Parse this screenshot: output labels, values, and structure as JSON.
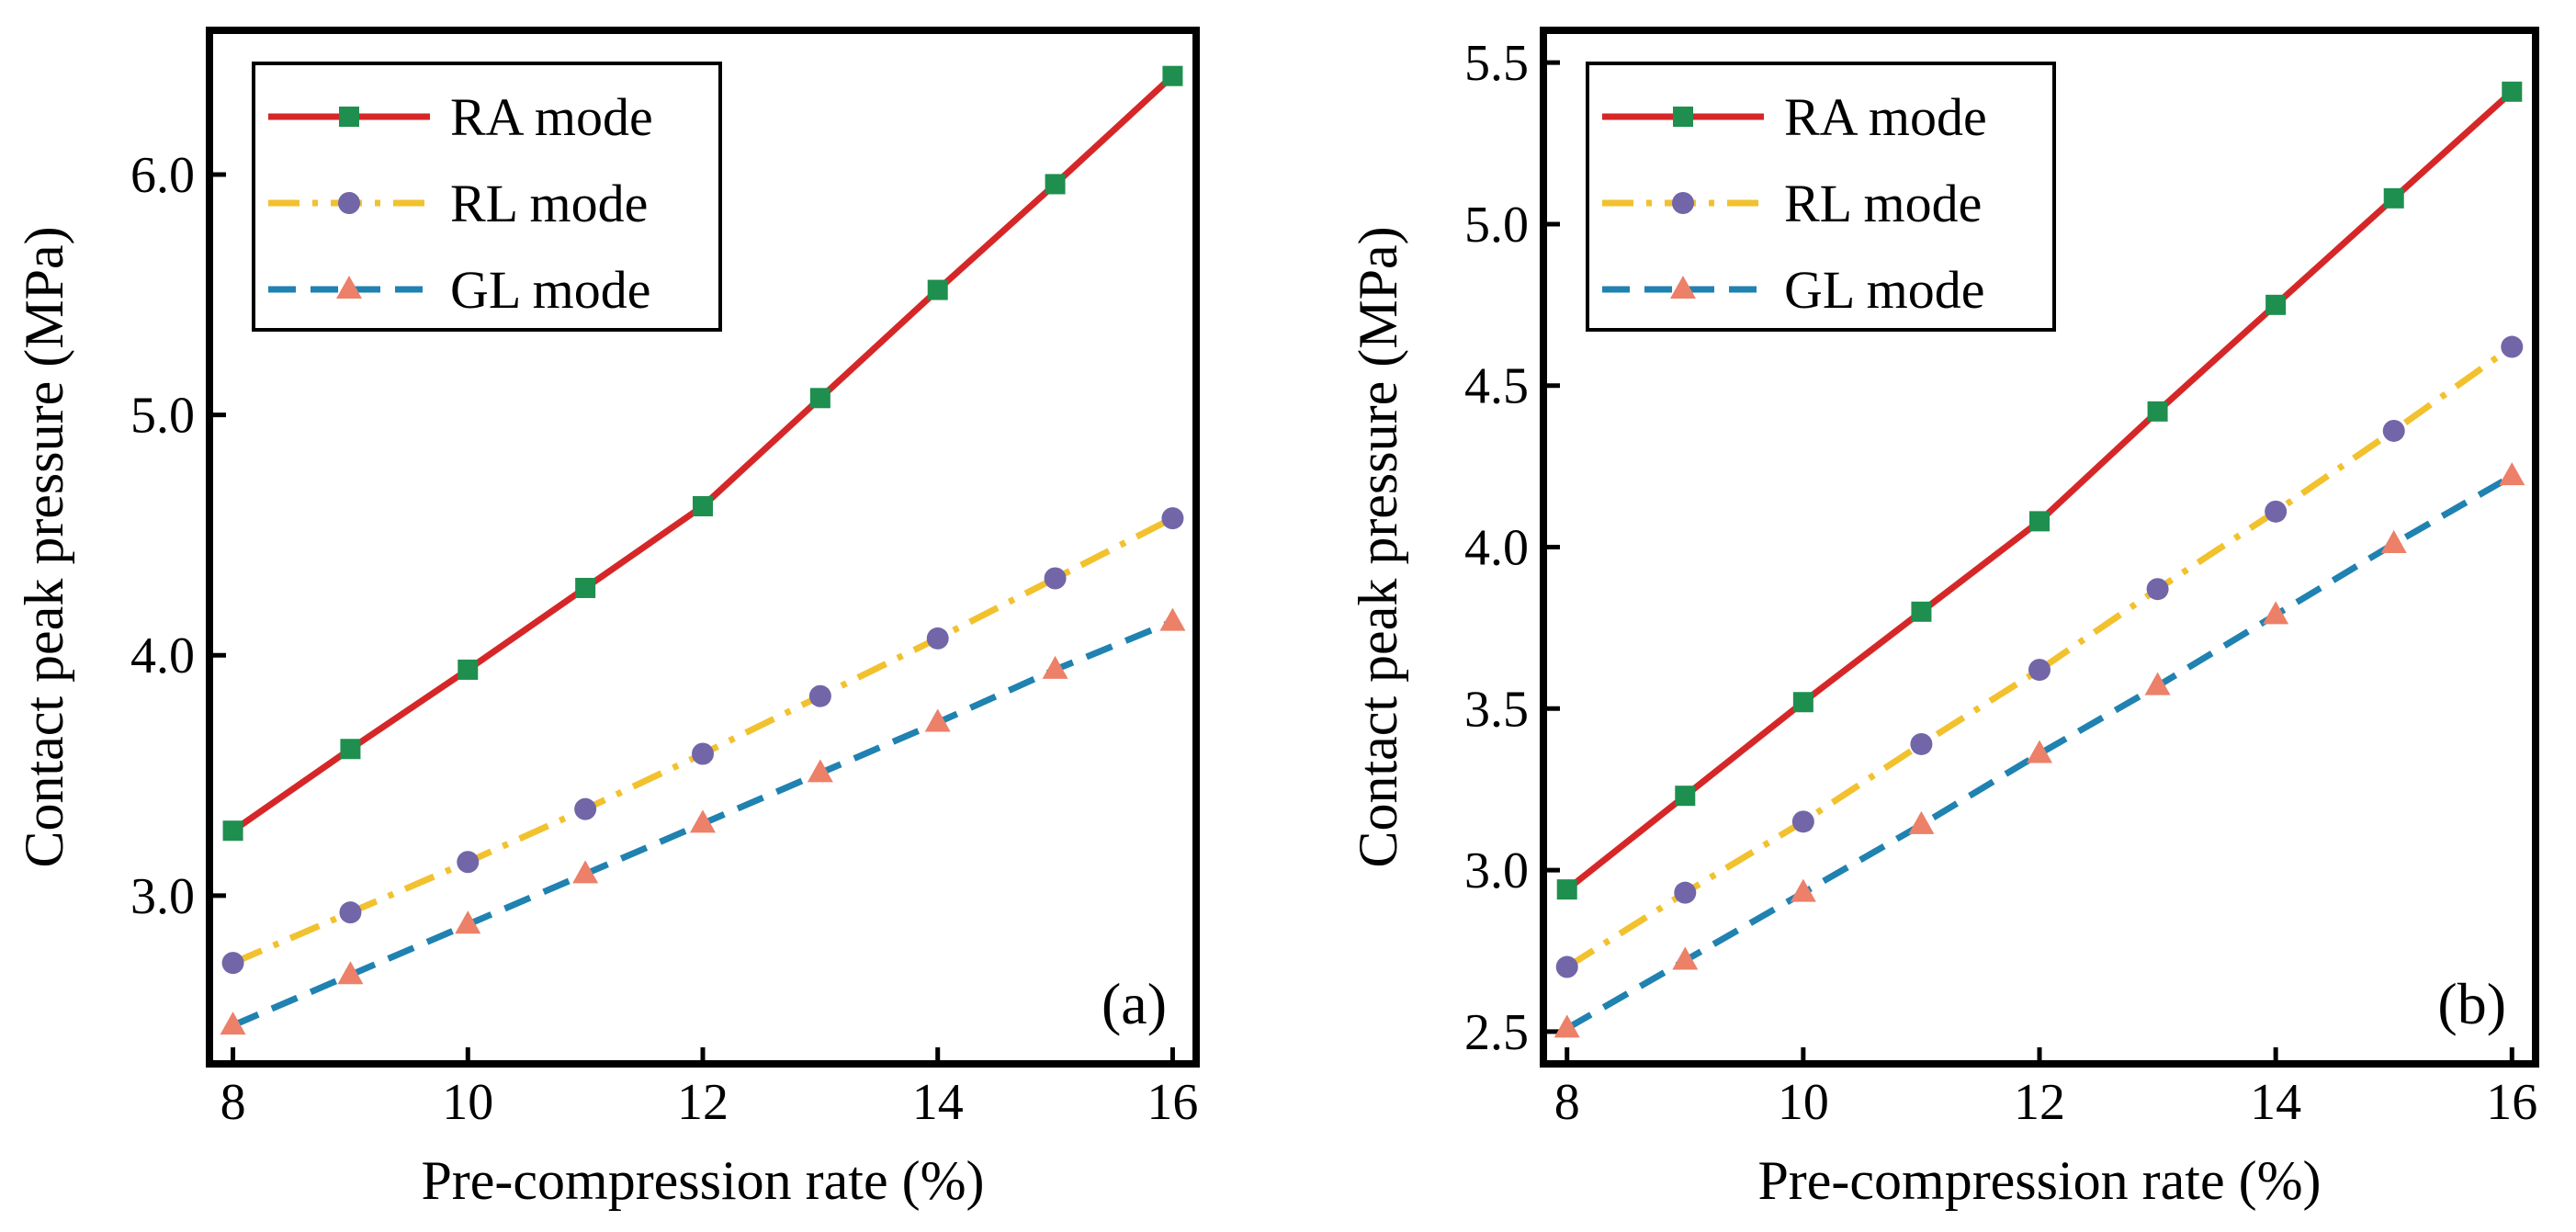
{
  "chart_data": [
    {
      "type": "line",
      "panel_label": "(a)",
      "xlabel": "Pre-compression rate (%)",
      "ylabel": "Contact peak pressure (MPa)",
      "x": [
        8,
        9,
        10,
        11,
        12,
        13,
        14,
        15,
        16
      ],
      "xlim": [
        7.8,
        16.2
      ],
      "ylim": [
        2.3,
        6.6
      ],
      "xticks": [
        8,
        10,
        12,
        14,
        16
      ],
      "xtick_labels": [
        "8",
        "10",
        "12",
        "14",
        "16"
      ],
      "yticks": [
        3.0,
        4.0,
        5.0,
        6.0
      ],
      "ytick_labels": [
        "3.0",
        "4.0",
        "5.0",
        "6.0"
      ],
      "legend_position": "top-left",
      "series": [
        {
          "name": "RA mode",
          "color": "#d62728",
          "marker": "square",
          "marker_color": "#1e8f4e",
          "line": "solid",
          "values": [
            3.27,
            3.61,
            3.94,
            4.28,
            4.62,
            5.07,
            5.52,
            5.96,
            6.41
          ]
        },
        {
          "name": "RL mode",
          "color": "#f2c12e",
          "marker": "circle",
          "marker_color": "#7266a8",
          "line": "dashdot",
          "values": [
            2.72,
            2.93,
            3.14,
            3.36,
            3.59,
            3.83,
            4.07,
            4.32,
            4.57
          ]
        },
        {
          "name": "GL mode",
          "color": "#1f82b0",
          "marker": "triangle",
          "marker_color": "#ec8068",
          "line": "dashed",
          "values": [
            2.46,
            2.67,
            2.88,
            3.09,
            3.3,
            3.51,
            3.72,
            3.94,
            4.14
          ]
        }
      ]
    },
    {
      "type": "line",
      "panel_label": "(b)",
      "xlabel": "Pre-compression rate (%)",
      "ylabel": "Contact peak pressure (MPa)",
      "x": [
        8,
        9,
        10,
        11,
        12,
        13,
        14,
        15,
        16
      ],
      "xlim": [
        7.8,
        16.2
      ],
      "ylim": [
        2.4,
        5.6
      ],
      "xticks": [
        8,
        10,
        12,
        14,
        16
      ],
      "xtick_labels": [
        "8",
        "10",
        "12",
        "14",
        "16"
      ],
      "yticks": [
        2.5,
        3.0,
        3.5,
        4.0,
        4.5,
        5.0,
        5.5
      ],
      "ytick_labels": [
        "2.5",
        "3.0",
        "3.5",
        "4.0",
        "4.5",
        "5.0",
        "5.5"
      ],
      "legend_position": "top-left",
      "series": [
        {
          "name": "RA mode",
          "color": "#d62728",
          "marker": "square",
          "marker_color": "#1e8f4e",
          "line": "solid",
          "values": [
            2.94,
            3.23,
            3.52,
            3.8,
            4.08,
            4.42,
            4.75,
            5.08,
            5.41
          ]
        },
        {
          "name": "RL mode",
          "color": "#f2c12e",
          "marker": "circle",
          "marker_color": "#7266a8",
          "line": "dashdot",
          "values": [
            2.7,
            2.93,
            3.15,
            3.39,
            3.62,
            3.87,
            4.11,
            4.36,
            4.62
          ]
        },
        {
          "name": "GL mode",
          "color": "#1f82b0",
          "marker": "triangle",
          "marker_color": "#ec8068",
          "line": "dashed",
          "values": [
            2.51,
            2.72,
            2.93,
            3.14,
            3.36,
            3.57,
            3.79,
            4.01,
            4.22
          ]
        }
      ]
    }
  ]
}
